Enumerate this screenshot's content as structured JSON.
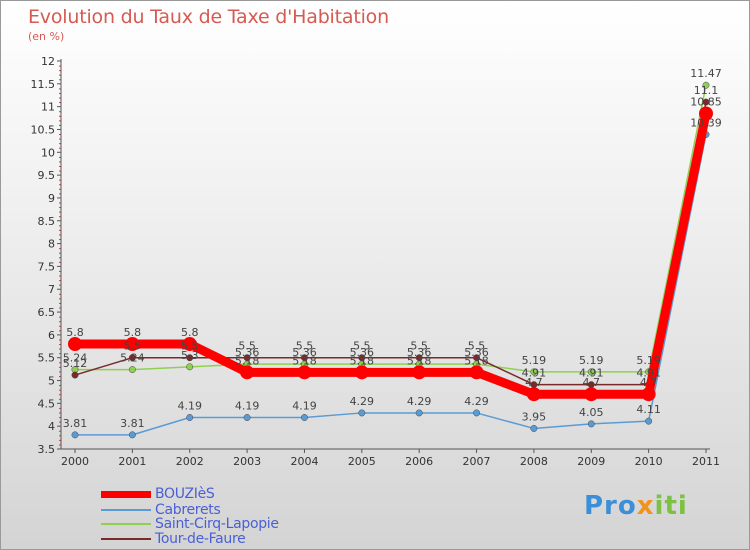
{
  "title": "Evolution du Taux de Taxe d'Habitation",
  "subtitle": "(en %)",
  "logo": {
    "part1": "Pro",
    "part2": "x",
    "part3": "iti"
  },
  "chart_data": {
    "type": "line",
    "title": "Evolution du Taux de Taxe d'Habitation",
    "ylabel": "(en %)",
    "xlabel": "",
    "categories": [
      "2000",
      "2001",
      "2002",
      "2003",
      "2004",
      "2005",
      "2006",
      "2007",
      "2008",
      "2009",
      "2010",
      "2011"
    ],
    "ylim": [
      3.5,
      12
    ],
    "yticks": [
      "3.5",
      "4",
      "4.5",
      "5",
      "5.5",
      "6",
      "6.5",
      "7",
      "7.5",
      "8",
      "8.5",
      "9",
      "9.5",
      "10",
      "10.5",
      "11",
      "11.5",
      "12"
    ],
    "grid": false,
    "legend": "bottom-left",
    "series": [
      {
        "name": "BOUZIèS",
        "color": "#ff0000",
        "values": [
          5.8,
          5.8,
          5.8,
          5.18,
          5.18,
          5.18,
          5.18,
          5.18,
          4.7,
          4.7,
          4.7,
          10.85
        ],
        "labels": [
          "5.8",
          "5.8",
          "5.8",
          "5.18",
          "5.18",
          "5.18",
          "5.18",
          "5.18",
          "4.7",
          "4.7",
          "4.7",
          "10.85"
        ]
      },
      {
        "name": "Cabrerets",
        "color": "#5b9bd5",
        "values": [
          3.81,
          3.81,
          4.19,
          4.19,
          4.19,
          4.29,
          4.29,
          4.29,
          3.95,
          4.05,
          4.11,
          10.39
        ],
        "labels": [
          "3.81",
          "3.81",
          "4.19",
          "4.19",
          "4.19",
          "4.29",
          "4.29",
          "4.29",
          "3.95",
          "4.05",
          "4.11",
          "10.39"
        ]
      },
      {
        "name": "Saint-Cirq-Lapopie",
        "color": "#8fd14f",
        "values": [
          5.24,
          5.24,
          5.3,
          5.36,
          5.36,
          5.36,
          5.36,
          5.36,
          5.19,
          5.19,
          5.19,
          11.47
        ],
        "labels": [
          "5.24",
          "5.24",
          "5.3",
          "5.36",
          "5.36",
          "5.36",
          "5.36",
          "5.36",
          "5.19",
          "5.19",
          "5.19",
          "11.47"
        ]
      },
      {
        "name": "Tour-de-Faure",
        "color": "#7a2a2a",
        "values": [
          5.12,
          5.5,
          5.5,
          5.5,
          5.5,
          5.5,
          5.5,
          5.5,
          4.91,
          4.91,
          4.91,
          11.1
        ],
        "labels": [
          "5.12",
          "5.5",
          "5.5",
          "5.5",
          "5.5",
          "5.5",
          "5.5",
          "5.5",
          "4.91",
          "4.91",
          "4.91",
          "11.1"
        ]
      }
    ]
  }
}
